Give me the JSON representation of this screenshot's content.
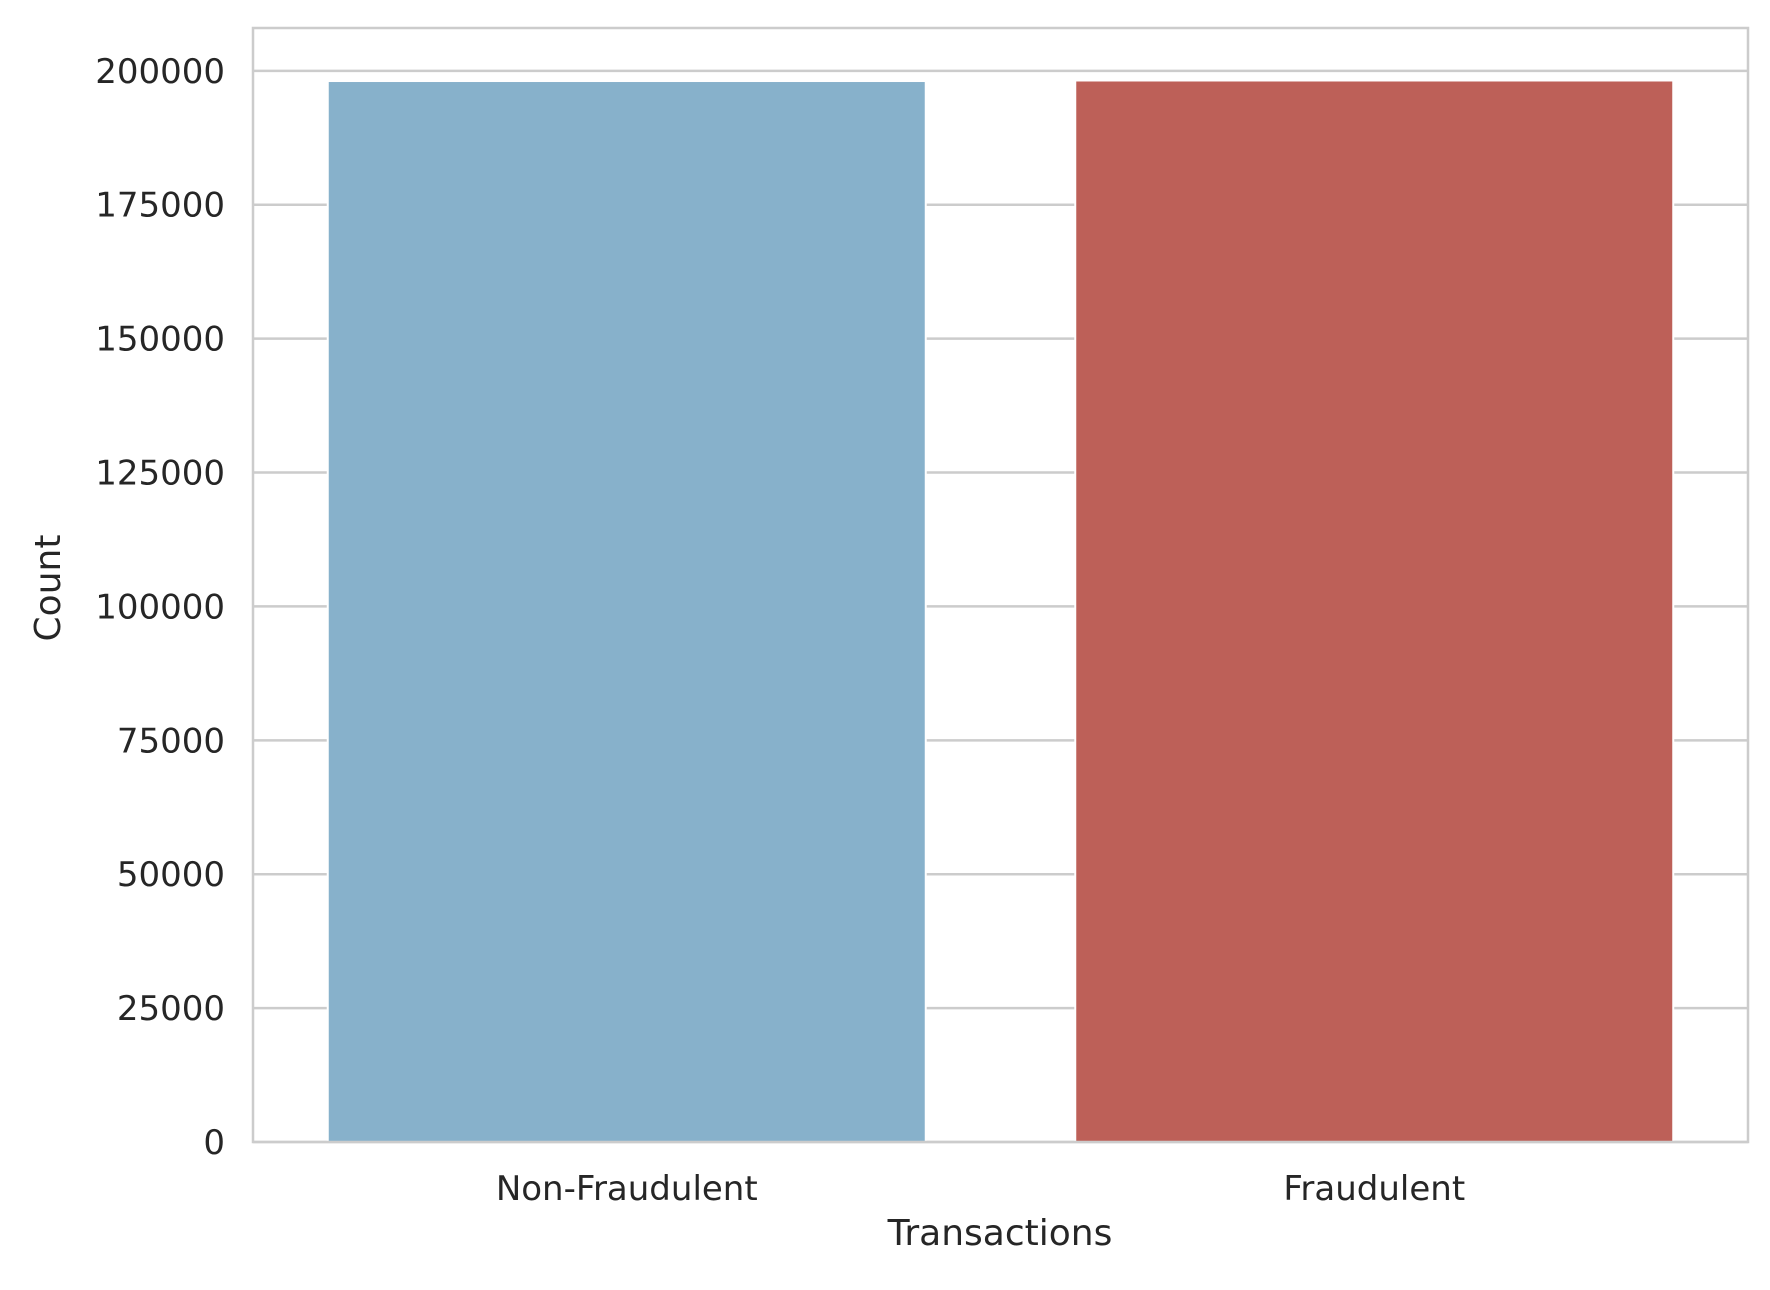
{
  "chart_data": {
    "type": "bar",
    "title": "",
    "xlabel": "Transactions",
    "ylabel": "Count",
    "categories": [
      "Non-Fraudulent",
      "Fraudulent"
    ],
    "values": [
      198100,
      198200
    ],
    "colors": [
      "#87b1cb",
      "#bd6058"
    ],
    "ylim": [
      0,
      208000
    ],
    "yticks": [
      0,
      25000,
      50000,
      75000,
      100000,
      125000,
      150000,
      175000,
      200000
    ],
    "grid": "horizontal",
    "style": {
      "gridColor": "#cccccc",
      "frameColor": "#cccccc",
      "textColor": "#262626"
    }
  }
}
